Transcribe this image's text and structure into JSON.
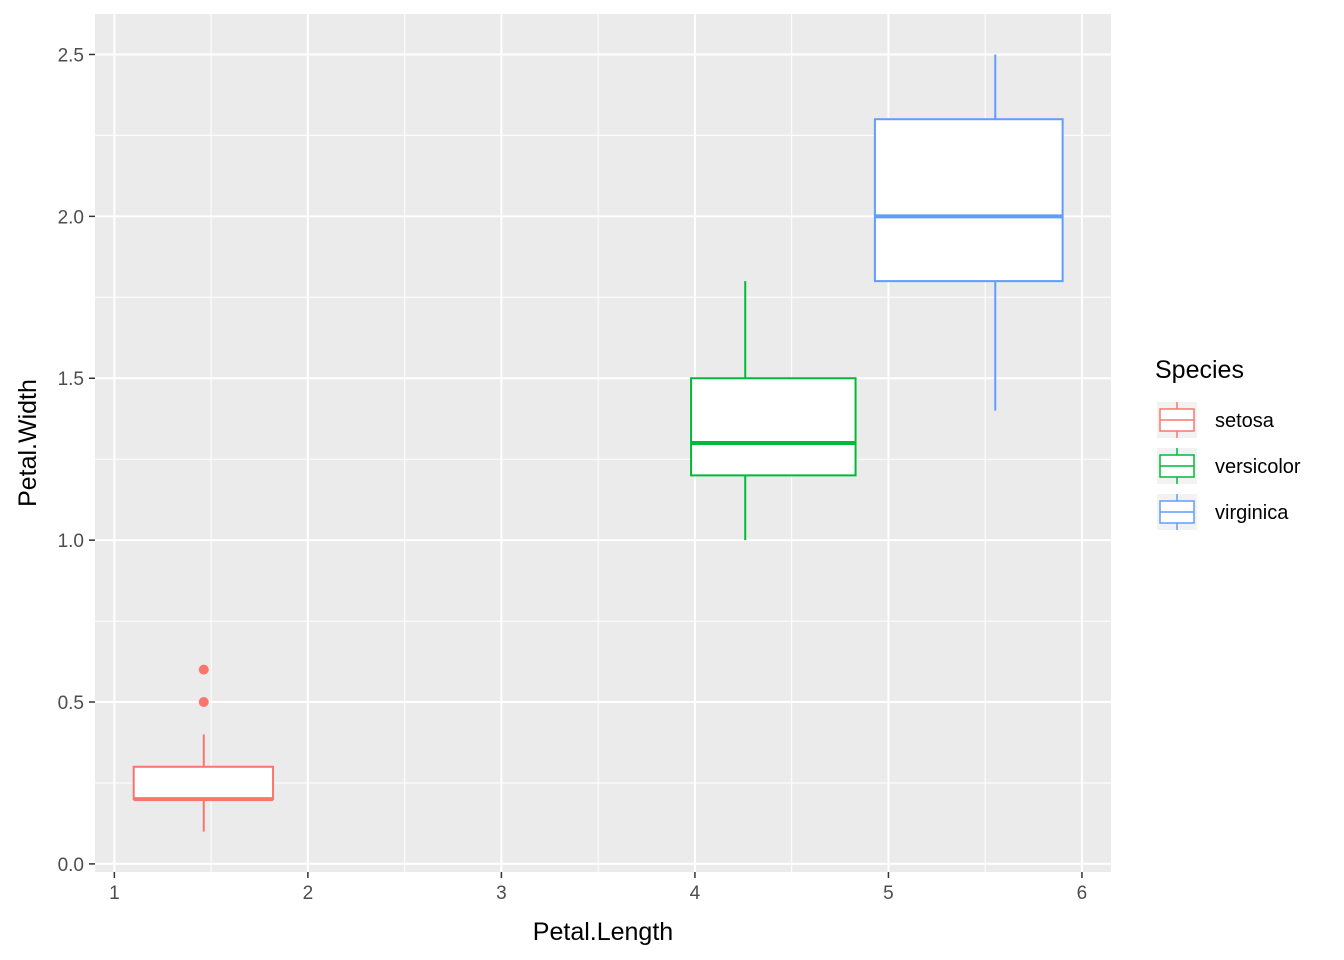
{
  "chart_data": {
    "type": "boxplot",
    "xlabel": "Petal.Length",
    "ylabel": "Petal.Width",
    "xlim": [
      0.9,
      6.15
    ],
    "ylim": [
      -0.025,
      2.625
    ],
    "x_ticks": [
      1,
      2,
      3,
      4,
      5,
      6
    ],
    "x_tick_labels": [
      "1",
      "2",
      "3",
      "4",
      "5",
      "6"
    ],
    "y_ticks": [
      0.0,
      0.5,
      1.0,
      1.5,
      2.0,
      2.5
    ],
    "y_tick_labels": [
      "0.0",
      "0.5",
      "1.0",
      "1.5",
      "2.0",
      "2.5"
    ],
    "grid": true,
    "panel_background": "#ebebeb",
    "legend": {
      "title": "Species",
      "placement": "right"
    },
    "series": [
      {
        "name": "setosa",
        "color": "#f8766d",
        "x_range": [
          1.1,
          1.82
        ],
        "x_center": 1.462,
        "whisker_low": 0.1,
        "q1": 0.2,
        "median": 0.2,
        "q3": 0.3,
        "whisker_high": 0.4,
        "outliers": [
          0.5,
          0.6
        ]
      },
      {
        "name": "versicolor",
        "color": "#00ba38",
        "x_range": [
          3.98,
          4.83
        ],
        "x_center": 4.26,
        "whisker_low": 1.0,
        "q1": 1.2,
        "median": 1.3,
        "q3": 1.5,
        "whisker_high": 1.8,
        "outliers": []
      },
      {
        "name": "virginica",
        "color": "#619cff",
        "x_range": [
          4.93,
          5.9
        ],
        "x_center": 5.552,
        "whisker_low": 1.4,
        "q1": 1.8,
        "median": 2.0,
        "q3": 2.3,
        "whisker_high": 2.5,
        "outliers": []
      }
    ]
  }
}
